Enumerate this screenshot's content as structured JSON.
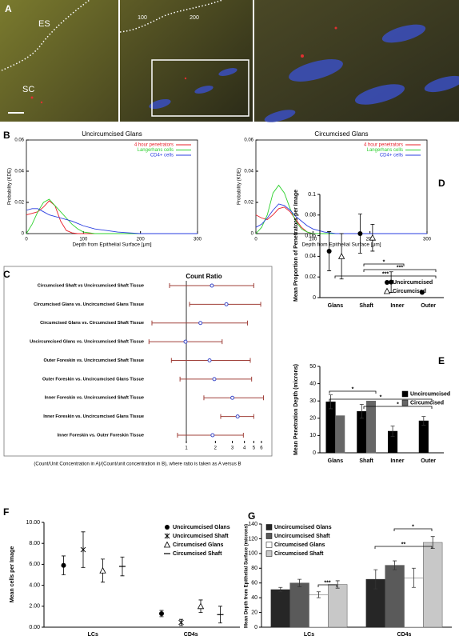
{
  "panel_a": {
    "label": "A",
    "regions": [
      "ES",
      "SC"
    ],
    "image_ticks": [
      100,
      200
    ]
  },
  "chart_data": [
    {
      "type": "line",
      "panel": "B",
      "title": "Uncircumcised Glans",
      "x": [
        0,
        10,
        20,
        30,
        40,
        50,
        60,
        70,
        80,
        90,
        100,
        120,
        140,
        160,
        180,
        200,
        250,
        300
      ],
      "xlim": [
        0,
        300
      ],
      "xticks": [
        0,
        100,
        200,
        300
      ],
      "ylim": [
        0,
        0.06
      ],
      "yticks": [
        0,
        0.02,
        0.04,
        0.06
      ],
      "xlabel": "Depth from Epithelial Surface [μm]",
      "ylabel": "Probability (KDE)",
      "legend": "top-right",
      "series": [
        {
          "name": "4 hour penetrators",
          "color": "#e8202a",
          "values": [
            0.012,
            0.013,
            0.014,
            0.017,
            0.021,
            0.018,
            0.008,
            0.002,
            0.0005,
            0,
            0,
            0,
            0,
            0,
            0,
            0,
            0,
            0
          ]
        },
        {
          "name": "Langerhans cells",
          "color": "#2ed12e",
          "values": [
            0,
            0.006,
            0.014,
            0.02,
            0.022,
            0.018,
            0.014,
            0.01,
            0.006,
            0.003,
            0.001,
            0,
            0,
            0,
            0,
            0,
            0,
            0
          ]
        },
        {
          "name": "CD4+ cells",
          "color": "#2a3ee0",
          "values": [
            0.015,
            0.016,
            0.016,
            0.014,
            0.012,
            0.011,
            0.01,
            0.009,
            0.008,
            0.0065,
            0.005,
            0.003,
            0.002,
            0.001,
            0.0005,
            0,
            0,
            0
          ]
        }
      ]
    },
    {
      "type": "line",
      "title": "Circumcised Glans",
      "x": [
        0,
        10,
        20,
        30,
        40,
        50,
        60,
        70,
        80,
        90,
        100,
        120,
        140,
        160,
        180,
        200,
        250,
        300
      ],
      "xlim": [
        0,
        300
      ],
      "xticks": [
        0,
        100,
        200,
        300
      ],
      "ylim": [
        0,
        0.06
      ],
      "yticks": [
        0,
        0.02,
        0.04,
        0.06
      ],
      "xlabel": "Depth from Epithelial Surface [μm]",
      "ylabel": "Probability (KDE)",
      "legend": "top-right",
      "series": [
        {
          "name": "4 hour penetrators",
          "color": "#e8202a",
          "values": [
            0.012,
            0.01,
            0.009,
            0.012,
            0.016,
            0.017,
            0.014,
            0.009,
            0.004,
            0.001,
            0,
            0,
            0,
            0,
            0,
            0,
            0,
            0
          ]
        },
        {
          "name": "Langerhans cells",
          "color": "#2ed12e",
          "values": [
            0,
            0.004,
            0.012,
            0.026,
            0.031,
            0.026,
            0.016,
            0.008,
            0.003,
            0.001,
            0,
            0,
            0,
            0,
            0,
            0,
            0,
            0
          ]
        },
        {
          "name": "CD4+ cells",
          "color": "#2a3ee0",
          "values": [
            0.004,
            0.006,
            0.01,
            0.015,
            0.019,
            0.018,
            0.015,
            0.011,
            0.008,
            0.005,
            0.003,
            0.001,
            0,
            0,
            0,
            0,
            0,
            0
          ]
        }
      ]
    },
    {
      "type": "forest",
      "panel": "C",
      "title": "Count Ratio",
      "log_x": true,
      "xlim": [
        0.4,
        7
      ],
      "xticks": [
        1,
        2,
        3,
        4,
        5,
        6
      ],
      "reference_line": 1,
      "point_color": "#3a48c8",
      "interval_color": "#a0403a",
      "categories": [
        "Circumcised Shaft vs Uncircumcised Shaft Tissue",
        "Circumcised Glans vs. Uncircumcised Glans Tissue",
        "Circumcised Glans vs. Circumcised Shaft Tissue",
        "Uncircumcised Glans vs. Uncircumcised Shaft Tissue",
        "Outer Foreskin vs. Uncircumcised Shaft Tissue",
        "Outer Foreskin vs. Uncircumcised Glans Tissue",
        "Inner Foreskin vs. Uncircumcised Shaft Tissue",
        "Inner Foreskin vs. Uncircumcised Glans Tissue",
        "Inner Foreskin vs. Outer Foreskin Tissue"
      ],
      "values": [
        1.84,
        2.6,
        1.4,
        0.98,
        1.74,
        1.95,
        3.0,
        3.4,
        1.87
      ],
      "lower": [
        0.67,
        1.08,
        0.44,
        0.41,
        0.7,
        0.86,
        1.52,
        2.27,
        0.81
      ],
      "upper": [
        5.0,
        5.9,
        4.3,
        2.35,
        4.6,
        4.75,
        6.3,
        5.0,
        3.9
      ],
      "note": "(Count/Unit Concentration in A)/(Count/unit concentration in B), where ratio is taken as A versus B"
    },
    {
      "type": "errorbar",
      "panel": "D",
      "ylabel": "Mean Proportion of Penetrators per Image",
      "categories": [
        "Glans",
        "Shaft",
        "Inner",
        "Outer"
      ],
      "ylim": [
        0,
        0.1
      ],
      "yticks": [
        0,
        0.02,
        0.04,
        0.06,
        0.08,
        0.1
      ],
      "legend": "bottom-right",
      "annotations": [
        "*",
        "***",
        "***"
      ],
      "series": [
        {
          "name": "Uncircumcised",
          "marker": "circle-filled",
          "color": "#000000",
          "values": [
            0.045,
            0.062,
            0.015,
            0.005
          ],
          "errors": [
            0.019,
            0.019,
            0.01,
            null
          ]
        },
        {
          "name": "Circumcised",
          "marker": "triangle-open",
          "color": "#000000",
          "values": [
            0.04,
            0.058,
            null,
            null
          ],
          "errors": [
            0.022,
            0.013,
            null,
            null
          ]
        }
      ]
    },
    {
      "type": "bar",
      "panel": "E",
      "ylabel": "Mean Penetration Depth (microns)",
      "categories": [
        "Glans",
        "Shaft",
        "Inner",
        "Outer"
      ],
      "ylim": [
        0,
        50
      ],
      "yticks": [
        0,
        10,
        20,
        30,
        40,
        50
      ],
      "legend": "center-right",
      "annotations": [
        "*",
        "*",
        "*"
      ],
      "group_width": 0.6,
      "series": [
        {
          "name": "Uncircumcised",
          "color": "#000000",
          "values": [
            29.5,
            24,
            12.5,
            18.5
          ],
          "errors": [
            4,
            4,
            3,
            2.5
          ]
        },
        {
          "name": "Circumcised",
          "color": "#666666",
          "values": [
            21.5,
            30,
            null,
            null
          ],
          "errors": [
            null,
            null,
            null,
            null
          ]
        }
      ]
    },
    {
      "type": "errorbar",
      "panel": "F",
      "ylabel": "Mean cells per Image",
      "categories": [
        "LCs",
        "CD4s"
      ],
      "ylim": [
        0,
        10
      ],
      "yticks": [
        {
          "value": 0,
          "label": "0.00"
        },
        {
          "value": 2,
          "label": "2.00"
        },
        {
          "value": 4,
          "label": "4.00"
        },
        {
          "value": 6,
          "label": "6.00"
        },
        {
          "value": 8,
          "label": "8.00"
        },
        {
          "value": 10,
          "label": "10.00"
        }
      ],
      "legend": "top-right",
      "series": [
        {
          "name": "Uncircumcised Glans",
          "marker": "circle-filled",
          "color": "#000000",
          "values": [
            5.9,
            1.3
          ],
          "errors": [
            0.9,
            0.3
          ]
        },
        {
          "name": "Uncircumcised Shaft",
          "marker": "x-star",
          "color": "#000000",
          "values": [
            7.4,
            0.45
          ],
          "errors": [
            1.7,
            0.3
          ]
        },
        {
          "name": "Circumcised Glans",
          "marker": "triangle-open",
          "color": "#000000",
          "values": [
            5.4,
            2.0
          ],
          "errors": [
            1.1,
            0.6
          ]
        },
        {
          "name": "Circumcised Shaft",
          "marker": "dash",
          "color": "#000000",
          "values": [
            5.8,
            1.2
          ],
          "errors": [
            0.9,
            0.8
          ]
        }
      ]
    },
    {
      "type": "bar",
      "panel": "G",
      "ylabel": "Mean Depth from Epithelial Surface (microns)",
      "categories": [
        "LCs",
        "CD4s"
      ],
      "ylim": [
        0,
        140
      ],
      "yticks": [
        0,
        20,
        40,
        60,
        80,
        100,
        120,
        140
      ],
      "legend": "top-left",
      "annotations": [
        "***",
        "*",
        "**"
      ],
      "group_width": 0.8,
      "series": [
        {
          "name": "Uncircumcised Glans",
          "color": "#262626",
          "values": [
            51,
            65
          ],
          "errors": [
            3,
            13
          ]
        },
        {
          "name": "Uncircumcised Shaft",
          "color": "#5a5a5a",
          "values": [
            60,
            84
          ],
          "errors": [
            5,
            6
          ]
        },
        {
          "name": "Circumcised Glans",
          "color": "#ffffff",
          "values": [
            44,
            67
          ],
          "errors": [
            4,
            13
          ]
        },
        {
          "name": "Circumcised Shaft",
          "color": "#c8c8c8",
          "values": [
            58,
            115
          ],
          "errors": [
            5,
            8
          ]
        }
      ]
    }
  ]
}
